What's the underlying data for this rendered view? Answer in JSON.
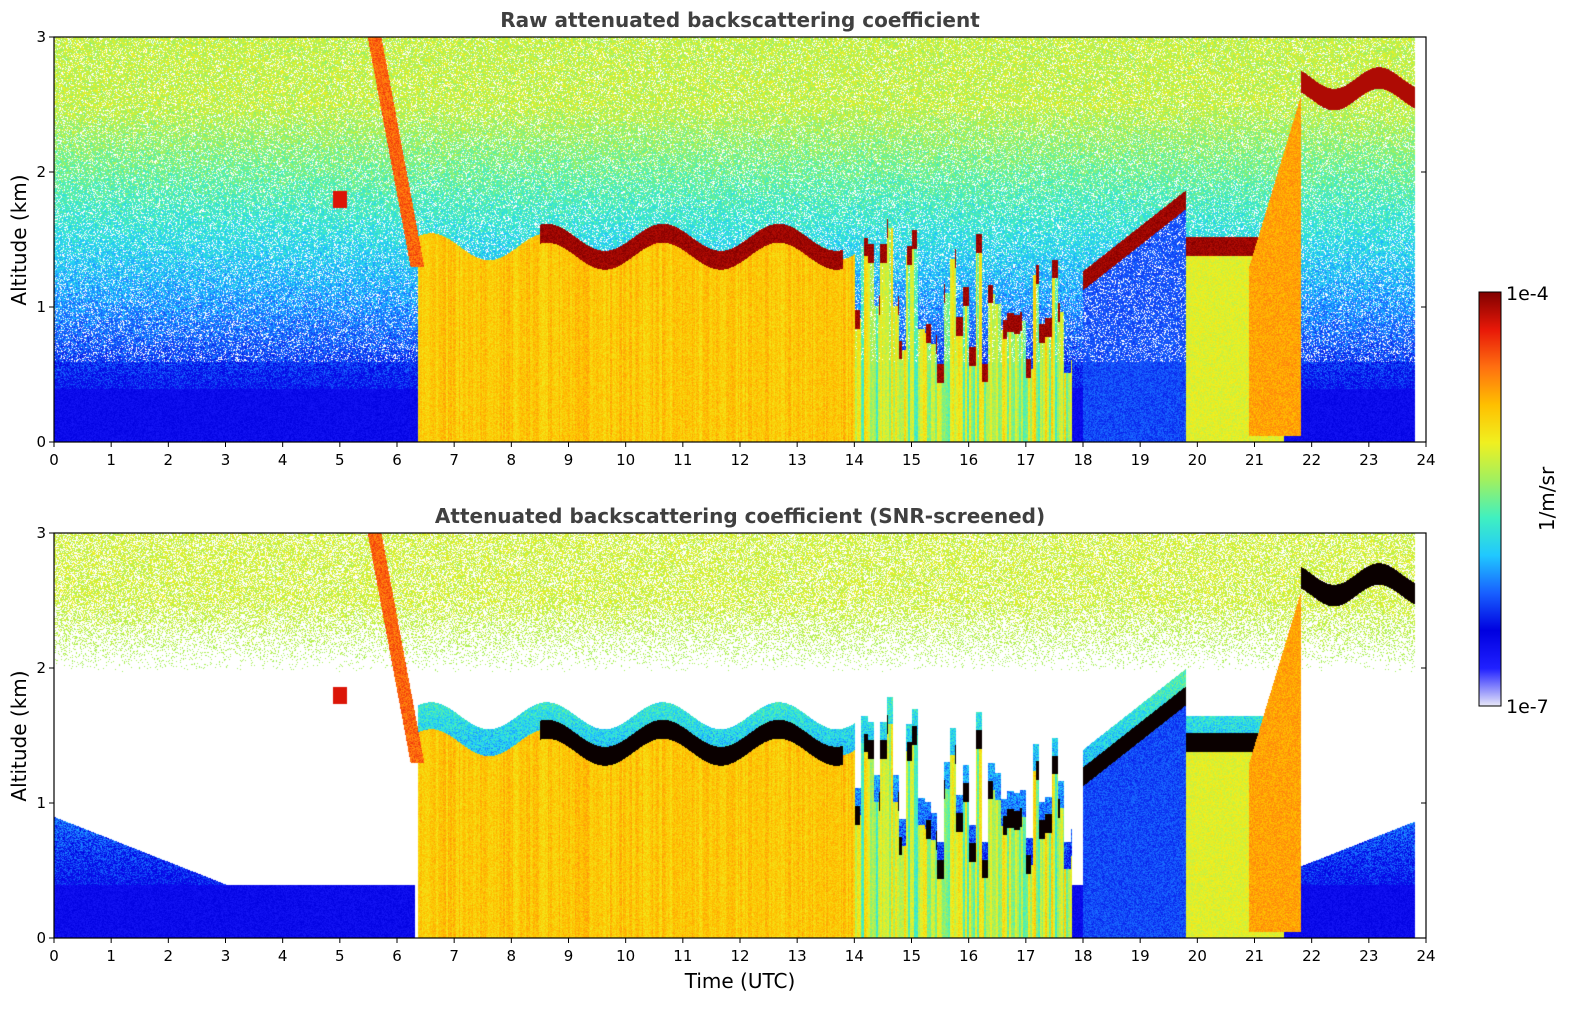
{
  "chart_data": [
    {
      "type": "heatmap",
      "title": "Raw attenuated backscattering coefficient",
      "xlabel": "",
      "ylabel": "Altitude (km)",
      "xlim": [
        0,
        24
      ],
      "ylim": [
        0,
        3
      ],
      "xticks": [
        "0",
        "1",
        "2",
        "3",
        "4",
        "5",
        "6",
        "7",
        "8",
        "9",
        "10",
        "11",
        "12",
        "13",
        "14",
        "15",
        "16",
        "17",
        "18",
        "19",
        "20",
        "21",
        "22",
        "23",
        "24"
      ],
      "yticks": [
        "0",
        "1",
        "2",
        "3"
      ],
      "screened": false
    },
    {
      "type": "heatmap",
      "title": "Attenuated backscattering coefficient (SNR-screened)",
      "xlabel": "Time (UTC)",
      "ylabel": "Altitude (km)",
      "xlim": [
        0,
        24
      ],
      "ylim": [
        0,
        3
      ],
      "xticks": [
        "0",
        "1",
        "2",
        "3",
        "4",
        "5",
        "6",
        "7",
        "8",
        "9",
        "10",
        "11",
        "12",
        "13",
        "14",
        "15",
        "16",
        "17",
        "18",
        "19",
        "20",
        "21",
        "22",
        "23",
        "24"
      ],
      "yticks": [
        "0",
        "1",
        "2",
        "3"
      ],
      "screened": true
    }
  ],
  "colorbar": {
    "label": "1/m/sr",
    "max_label": "1e-4",
    "min_label": "1e-7",
    "scale": "log",
    "range": [
      1e-07,
      0.0001
    ],
    "colormap": [
      "#e8e8f8",
      "#2020ff",
      "#0000e0",
      "#1860ff",
      "#20c8ff",
      "#40f0c0",
      "#a0f060",
      "#f0f020",
      "#ffc000",
      "#ff7010",
      "#e81808",
      "#800000"
    ]
  },
  "features": {
    "aerosol_layer_top_km": 0.4,
    "cloud_base_km": 1.45,
    "high_cloud_km": [
      2.4,
      2.8
    ],
    "data_end_hour": 23.8
  }
}
